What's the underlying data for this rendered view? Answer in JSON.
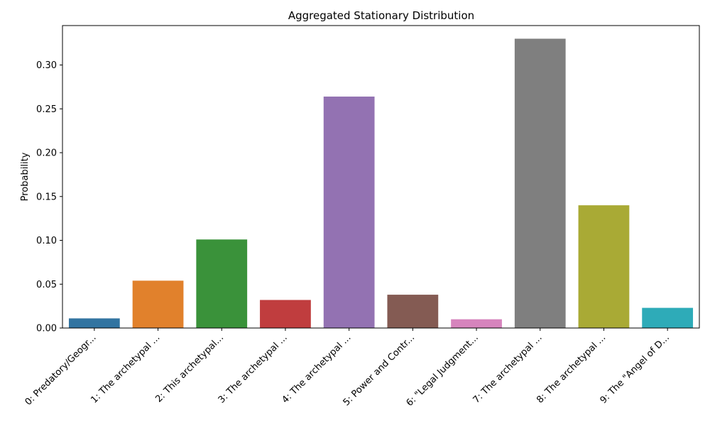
{
  "chart_data": {
    "type": "bar",
    "title": "Aggregated Stationary Distribution",
    "xlabel": "",
    "ylabel": "Probability",
    "ylim": [
      0,
      0.345
    ],
    "yticks": [
      "0.00",
      "0.05",
      "0.10",
      "0.15",
      "0.20",
      "0.25",
      "0.30"
    ],
    "categories": [
      "0: Predatory/Geogr...",
      "1: The archetypal ...",
      "2: This archetypal...",
      "3: The archetypal ...",
      "4: The archetypal ...",
      "5: Power and Contr...",
      "6: \"Legal Judgment...",
      "7: The archetypal ...",
      "8: The archetypal ...",
      "9: The \"Angel of D..."
    ],
    "values": [
      0.011,
      0.054,
      0.101,
      0.032,
      0.264,
      0.038,
      0.01,
      0.33,
      0.14,
      0.023
    ],
    "colors": [
      "#3274a1",
      "#e1812c",
      "#3a923a",
      "#c03d3e",
      "#9372b2",
      "#845b53",
      "#d684bd",
      "#7f7f7f",
      "#a9aa35",
      "#2eabb8"
    ],
    "grid": false,
    "legend": "none"
  }
}
